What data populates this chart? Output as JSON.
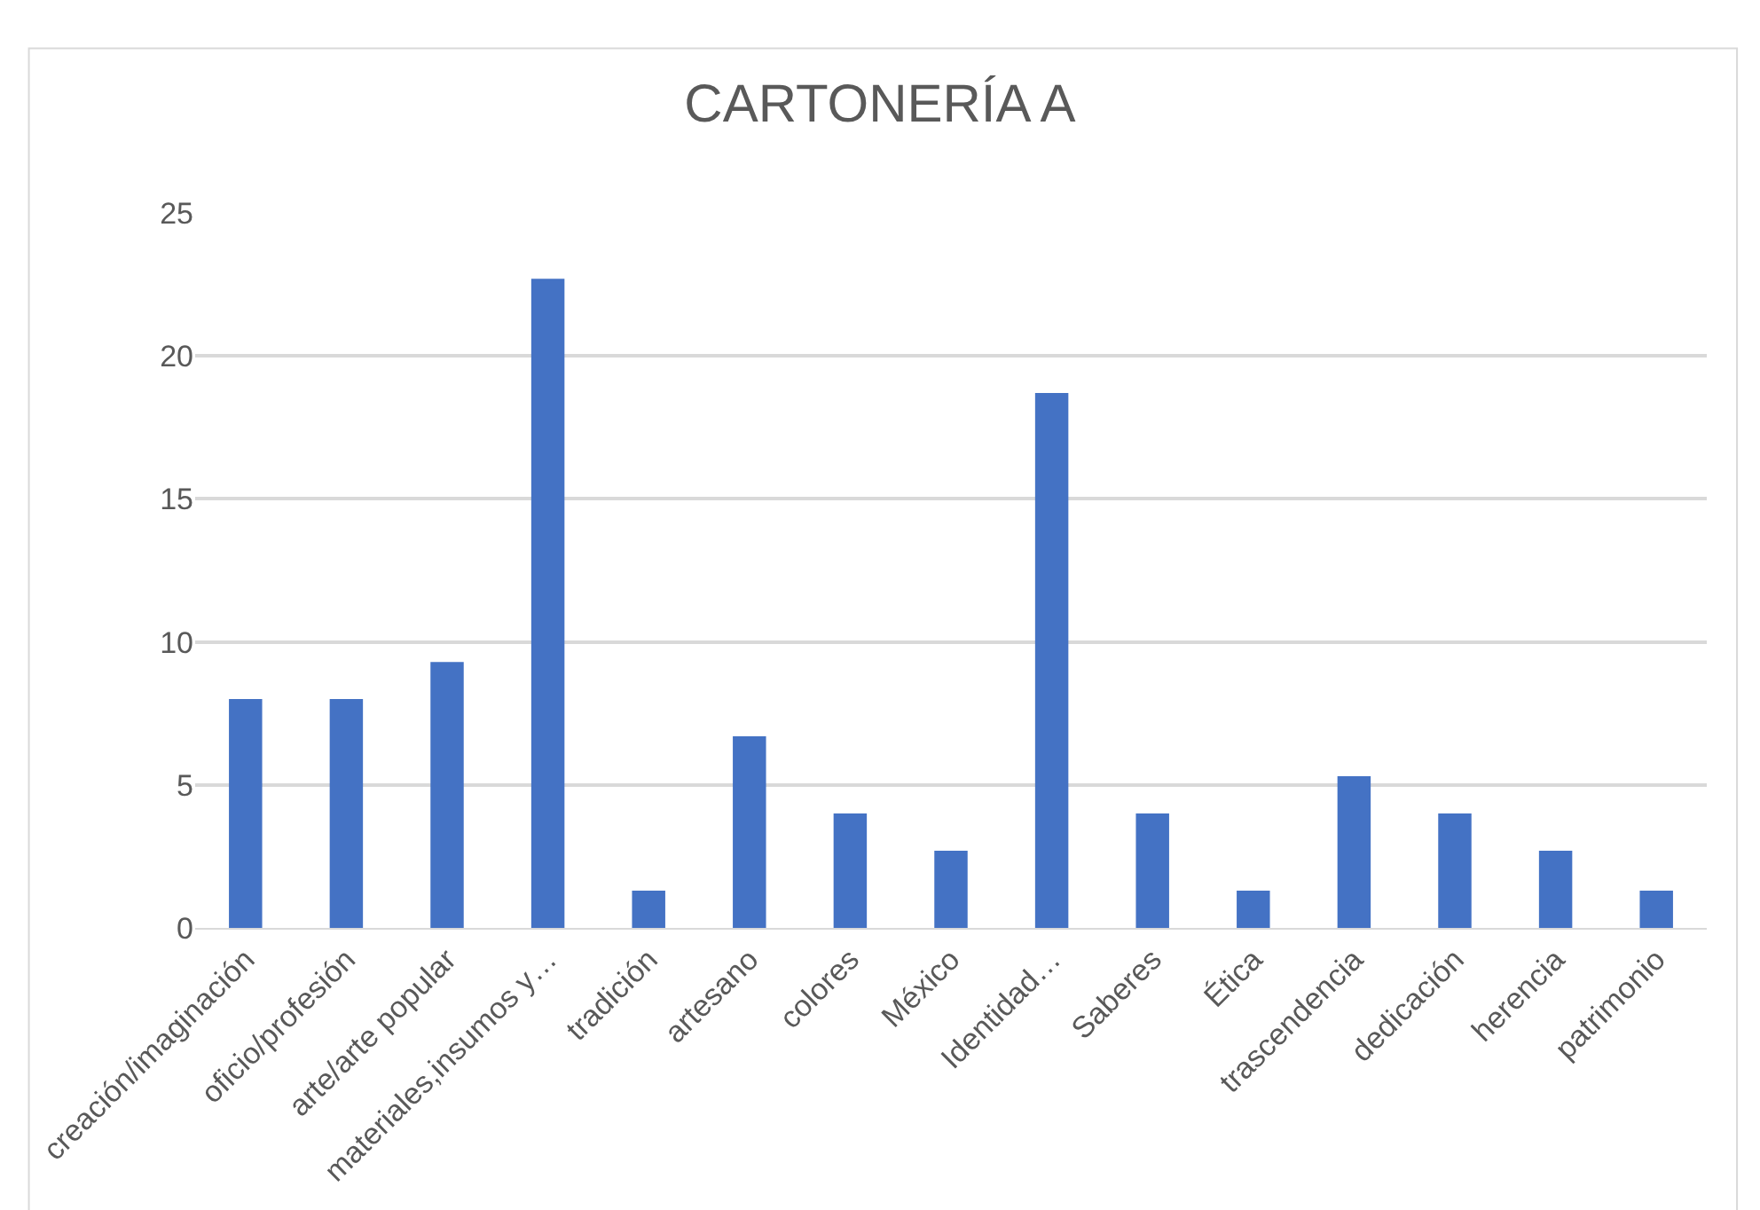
{
  "chart_data": {
    "type": "bar",
    "title": "CARTONERÍA A",
    "categories": [
      "creación/imaginación",
      "oficio/profesión",
      "arte/arte popular",
      "materiales,insumos y…",
      "tradición",
      "artesano",
      "colores",
      "México",
      "Identidad…",
      "Saberes",
      "Ética",
      "trascendencia",
      "dedicación",
      "herencia",
      "patrimonio"
    ],
    "values": [
      8.0,
      8.0,
      9.3,
      22.7,
      1.3,
      6.7,
      4.0,
      2.7,
      18.7,
      4.0,
      1.3,
      5.3,
      4.0,
      2.7,
      1.3
    ],
    "color": "#4472c4",
    "ylim": [
      0,
      25
    ],
    "yticks": [
      0,
      5,
      10,
      15,
      20,
      25
    ],
    "grid": "y"
  }
}
